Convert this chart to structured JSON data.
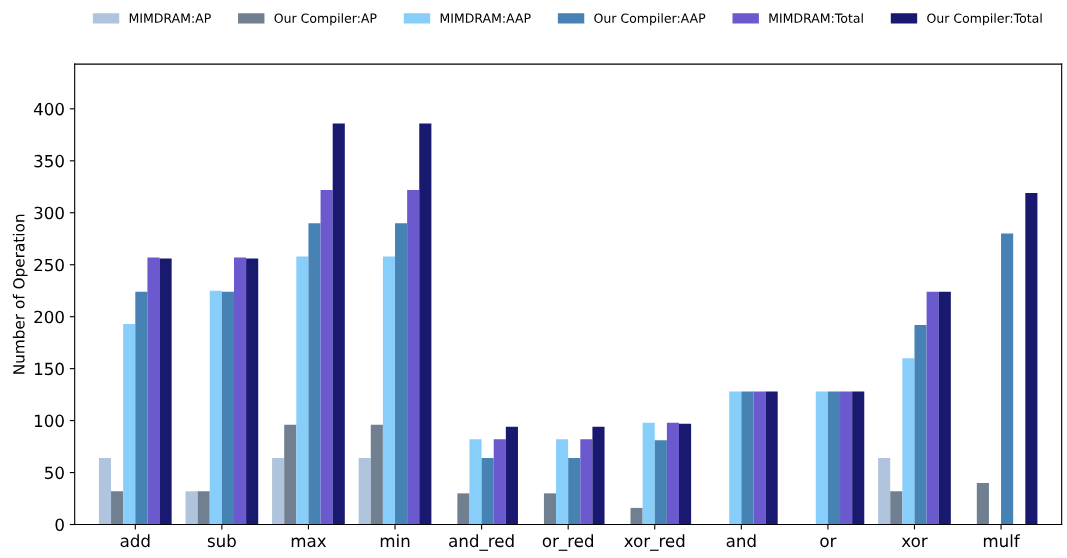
{
  "chart_data": {
    "type": "bar",
    "ylabel": "Number of Operation",
    "categories": [
      "add",
      "sub",
      "max",
      "min",
      "and_red",
      "or_red",
      "xor_red",
      "and",
      "or",
      "xor",
      "mulf"
    ],
    "series": [
      {
        "name": "MIMDRAM:AP",
        "color": "#b0c4de",
        "values": [
          64,
          32,
          64,
          64,
          0,
          0,
          0,
          0,
          0,
          64,
          0
        ]
      },
      {
        "name": "Our Compiler:AP",
        "color": "#708090",
        "values": [
          32,
          32,
          96,
          96,
          30,
          30,
          16,
          0,
          0,
          32,
          40
        ]
      },
      {
        "name": "MIMDRAM:AAP",
        "color": "#87cefa",
        "values": [
          193,
          225,
          258,
          258,
          82,
          82,
          98,
          128,
          128,
          160,
          0
        ]
      },
      {
        "name": "Our Compiler:AAP",
        "color": "#4682b4",
        "values": [
          224,
          224,
          290,
          290,
          64,
          64,
          81,
          128,
          128,
          192,
          280
        ]
      },
      {
        "name": "MIMDRAM:Total",
        "color": "#6a5acd",
        "values": [
          257,
          257,
          322,
          322,
          82,
          82,
          98,
          128,
          128,
          224,
          0
        ]
      },
      {
        "name": "Our Compiler:Total",
        "color": "#191970",
        "values": [
          256,
          256,
          386,
          386,
          94,
          94,
          97,
          128,
          128,
          224,
          319
        ]
      }
    ],
    "ylim": [
      0,
      443
    ],
    "yticks": [
      0,
      50,
      100,
      150,
      200,
      250,
      300,
      350,
      400
    ],
    "grid": false,
    "legend": "top"
  }
}
